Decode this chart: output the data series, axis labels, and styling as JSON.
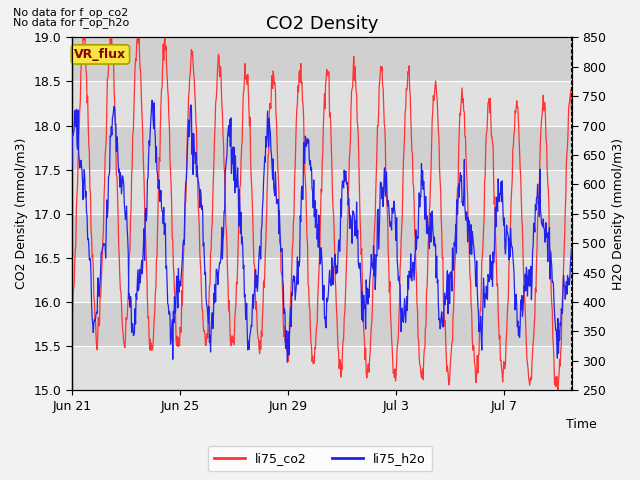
{
  "title": "CO2 Density",
  "xlabel": "Time",
  "ylabel_left": "CO2 Density (mmol/m3)",
  "ylabel_right": "H2O Density (mmol/m3)",
  "ylim_left": [
    15.0,
    19.0
  ],
  "ylim_right": [
    250,
    850
  ],
  "yticks_left": [
    15.0,
    15.5,
    16.0,
    16.5,
    17.0,
    17.5,
    18.0,
    18.5,
    19.0
  ],
  "yticks_right": [
    250,
    300,
    350,
    400,
    450,
    500,
    550,
    600,
    650,
    700,
    750,
    800,
    850
  ],
  "xtick_positions": [
    0,
    4,
    8,
    12,
    16
  ],
  "xtick_labels": [
    "Jun 21",
    "Jun 25",
    "Jun 29",
    "Jul 3",
    "Jul 7"
  ],
  "xlim": [
    0,
    18.5
  ],
  "annotation1": "No data for f_op_co2",
  "annotation2": "No data for f_op_h2o",
  "vr_flux_label": "VR_flux",
  "legend_labels": [
    "li75_co2",
    "li75_h2o"
  ],
  "line_colors": [
    "#ff3333",
    "#2222ee"
  ],
  "fig_facecolor": "#f2f2f2",
  "plot_facecolor": "#e8e8e8",
  "band_light": "#e0e0e0",
  "band_dark": "#d0d0d0",
  "title_fontsize": 13,
  "axis_label_fontsize": 9,
  "tick_fontsize": 9,
  "annotation_fontsize": 8,
  "legend_fontsize": 9
}
